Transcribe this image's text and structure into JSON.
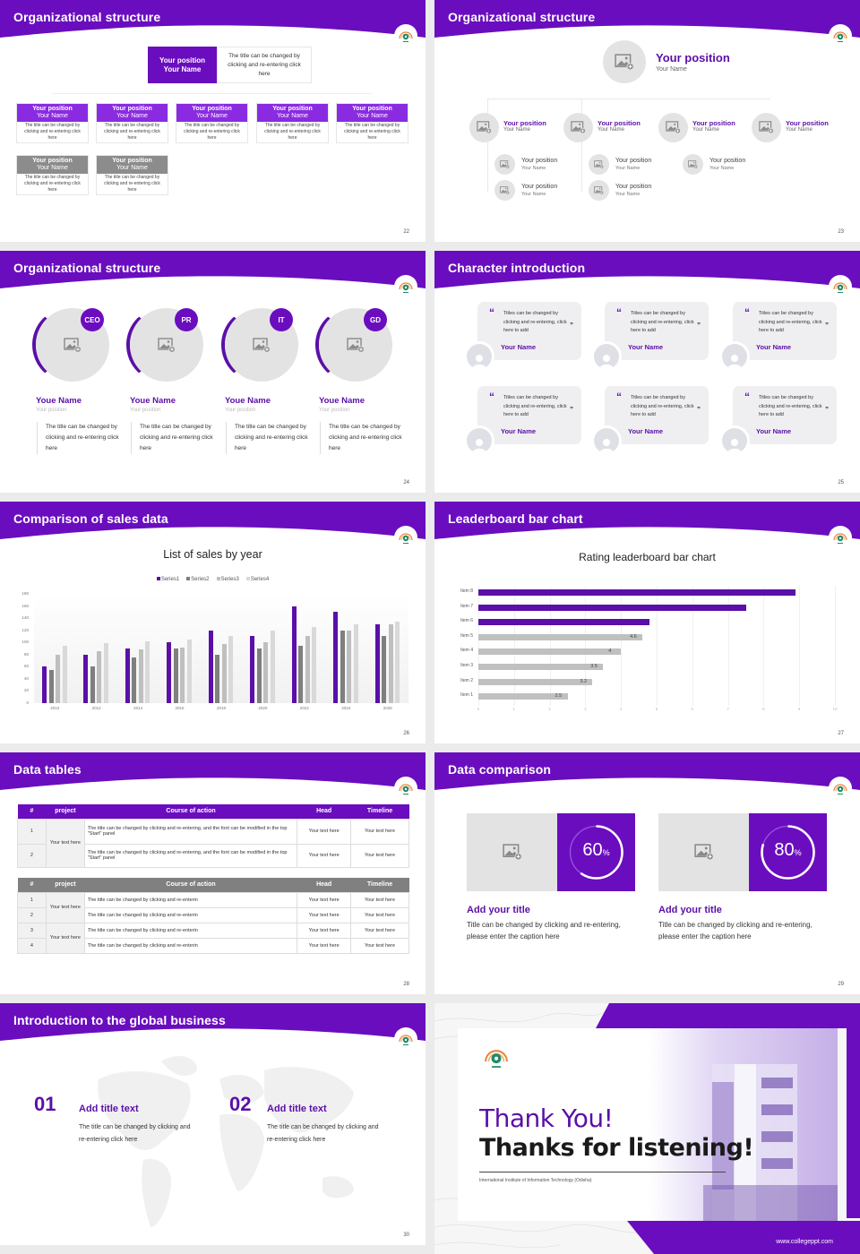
{
  "brand": {
    "primary": "#6a0dbf",
    "dark_purple": "#5b0fa8",
    "gray_header": "#8c8c8c"
  },
  "slides": [
    {
      "title": "Organizational structure",
      "page": "22",
      "top": {
        "position": "Your position",
        "name": "Your Name",
        "desc": "The title can be changed by clicking and re-entering click here"
      },
      "row1": [
        {
          "position": "Your position",
          "name": "Your Name",
          "desc": "The title can be changed by clicking and re-entering click here"
        },
        {
          "position": "Your position",
          "name": "Your Name",
          "desc": "The title can be changed by clicking and re-entering click here"
        },
        {
          "position": "Your position",
          "name": "Your Name",
          "desc": "The title can be changed by clicking and re-entering click here"
        },
        {
          "position": "Your position",
          "name": "Your Name",
          "desc": "The title can be changed by clicking and re-entering click here"
        },
        {
          "position": "Your position",
          "name": "Your Name",
          "desc": "The title can be changed by clicking and re-entering click here"
        }
      ],
      "row2": [
        {
          "position": "Your position",
          "name": "Your Name",
          "desc": "The title can be changed by clicking and re-entering click here"
        },
        {
          "position": "Your position",
          "name": "Your Name",
          "desc": "The title can be changed by clicking and re-entering click here"
        }
      ]
    },
    {
      "title": "Organizational structure",
      "page": "23",
      "top": {
        "position": "Your position",
        "name": "Your Name"
      },
      "level2": [
        {
          "position": "Your position",
          "name": "Your Name"
        },
        {
          "position": "Your position",
          "name": "Your Name"
        },
        {
          "position": "Your position",
          "name": "Your Name"
        },
        {
          "position": "Your position",
          "name": "Your Name"
        }
      ],
      "level3": [
        {
          "position": "Your position",
          "name": "Your Name"
        },
        {
          "position": "Your position",
          "name": "Your Name"
        },
        {
          "position": "Your position",
          "name": "Your Name"
        },
        {
          "position": "Your position",
          "name": "Your Name"
        },
        {
          "position": "Your position",
          "name": "Your Name"
        }
      ]
    },
    {
      "title": "Organizational structure",
      "page": "24",
      "people": [
        {
          "badge": "CEO",
          "name": "Youe Name",
          "position": "Your position",
          "desc": "The title can be changed by clicking and re-entering click here"
        },
        {
          "badge": "PR",
          "name": "Youe Name",
          "position": "Your position",
          "desc": "The title can be changed by clicking and re-entering click here"
        },
        {
          "badge": "IT",
          "name": "Youe Name",
          "position": "Your position",
          "desc": "The title can be changed by clicking and re-entering click here"
        },
        {
          "badge": "GD",
          "name": "Youe Name",
          "position": "Your position",
          "desc": "The title can be changed by clicking and re-entering click here"
        }
      ]
    },
    {
      "title": "Character introduction",
      "page": "25",
      "quotes": [
        {
          "text": "Titles can be changed by clicking and re-entering, click here to add",
          "name": "Your Name"
        },
        {
          "text": "Titles can be changed by clicking and re-entering, click here to add",
          "name": "Your Name"
        },
        {
          "text": "Titles can be changed by clicking and re-entering, click here to add",
          "name": "Your Name"
        },
        {
          "text": "Titles can be changed by clicking and re-entering, click here to add",
          "name": "Your Name"
        },
        {
          "text": "Titles can be changed by clicking and re-entering, click here to add",
          "name": "Your Name"
        },
        {
          "text": "Titles can be changed by clicking and re-entering, click here to add",
          "name": "Your Name"
        }
      ]
    },
    {
      "title": "Comparison of sales data",
      "page": "26"
    },
    {
      "title": "Leaderboard bar chart",
      "page": "27"
    },
    {
      "title": "Data tables",
      "page": "28",
      "headers": [
        "#",
        "project",
        "Course of action",
        "Head",
        "Timeline"
      ],
      "table1": {
        "project": "Your text here",
        "rows": [
          {
            "num": "1",
            "action": "The title can be changed by clicking and re-entering, and the font can be modified in the top \"Start\" panel",
            "head": "Your text here",
            "timeline": "Your text here"
          },
          {
            "num": "2",
            "action": "The title can be changed by clicking and re-entering, and the font can be modified in the top \"Start\" panel",
            "head": "Your text here",
            "timeline": "Your text here"
          }
        ]
      },
      "table2": {
        "projects": [
          "Your text here",
          "Your text here"
        ],
        "rows": [
          {
            "num": "1",
            "action": "The title can be changed by clicking and re-enterin",
            "head": "Your text here",
            "timeline": "Your text here"
          },
          {
            "num": "2",
            "action": "The title can be changed by clicking and re-enterin",
            "head": "Your text here",
            "timeline": "Your text here"
          },
          {
            "num": "3",
            "action": "The title can be changed by clicking and re-enterin",
            "head": "Your text here",
            "timeline": "Your text here"
          },
          {
            "num": "4",
            "action": "The title can be changed by clicking and re-enterin",
            "head": "Your text here",
            "timeline": "Your text here"
          }
        ]
      }
    },
    {
      "title": "Data comparison",
      "page": "29",
      "items": [
        {
          "percent": "60",
          "unit": "%",
          "value": 60,
          "title": "Add your title",
          "desc": "Title can be changed by clicking and re-entering, please enter the caption here"
        },
        {
          "percent": "80",
          "unit": "%",
          "value": 80,
          "title": "Add your title",
          "desc": "Title can be changed by clicking and re-entering, please enter the caption here"
        }
      ]
    },
    {
      "title": "Introduction to the global business",
      "page": "30",
      "items": [
        {
          "num": "01",
          "title": "Add title text",
          "desc": "The title can be changed by clicking and re-entering click here"
        },
        {
          "num": "02",
          "title": "Add title text",
          "desc": "The title can be changed by clicking and re-entering click here"
        }
      ]
    },
    {
      "thank_you": "Thank You!",
      "subtitle": "Thanks for listening!",
      "institute": "International Institute of Information Technology (Odisha)",
      "url": "www.collegeppt.com"
    }
  ],
  "chart_data": [
    {
      "type": "bar",
      "title": "List of sales by year",
      "categories": [
        "2010",
        "2012",
        "2014",
        "2016",
        "2018",
        "2020",
        "2022",
        "2024",
        "2026"
      ],
      "series": [
        {
          "name": "Series1",
          "color": "#5b0fa8",
          "values": [
            60,
            80,
            90,
            100,
            120,
            110,
            160,
            150,
            130
          ]
        },
        {
          "name": "Series2",
          "color": "#7f7f7f",
          "values": [
            55,
            60,
            75,
            90,
            80,
            90,
            95,
            120,
            110
          ]
        },
        {
          "name": "Series3",
          "color": "#bfbfbf",
          "values": [
            80,
            86,
            88,
            92,
            98,
            100,
            110,
            120,
            130
          ]
        },
        {
          "name": "Series4",
          "color": "#d9d9d9",
          "values": [
            95,
            99,
            102,
            105,
            110,
            120,
            126,
            130,
            135
          ]
        }
      ],
      "xlabel": "",
      "ylabel": "",
      "ylim": [
        0,
        180
      ],
      "yticks": [
        0,
        20,
        40,
        60,
        80,
        100,
        120,
        140,
        160,
        180
      ],
      "legend_position": "top",
      "grid": true
    },
    {
      "type": "bar",
      "orientation": "horizontal",
      "title": "Rating leaderboard bar chart",
      "categories": [
        "Item 8",
        "Item 7",
        "Item 6",
        "Item 5",
        "Item 4",
        "Item 3",
        "Item 2",
        "Item 1"
      ],
      "values": [
        8.9,
        7.5,
        4.8,
        4.6,
        4,
        3.5,
        3.2,
        2.5
      ],
      "labels": [
        "",
        "",
        "",
        "4.6",
        "4",
        "3.5",
        "3.2",
        "2.5"
      ],
      "highlight_top": 3,
      "xlim": [
        0,
        10
      ],
      "xticks": [
        0,
        1,
        2,
        3,
        4,
        5,
        6,
        7,
        8,
        9,
        10
      ],
      "grid": true
    }
  ]
}
